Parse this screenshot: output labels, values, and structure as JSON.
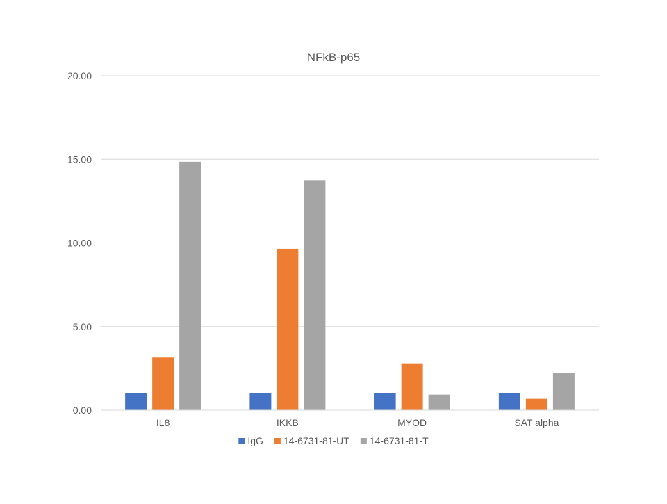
{
  "chart_data": {
    "type": "bar",
    "title": "NFkB-p65",
    "xlabel": "",
    "ylabel": "",
    "categories": [
      "IL8",
      "IKKB",
      "MYOD",
      "SAT alpha"
    ],
    "series": [
      {
        "name": "IgG",
        "color": "#4472C4",
        "values": [
          1.0,
          1.0,
          1.0,
          1.0
        ]
      },
      {
        "name": "14-6731-81-UT",
        "color": "#ED7D31",
        "values": [
          3.15,
          9.65,
          2.8,
          0.68
        ]
      },
      {
        "name": "14-6731-81-T",
        "color": "#A5A5A5",
        "values": [
          14.85,
          13.75,
          0.93,
          2.22
        ]
      }
    ],
    "ylim": [
      0,
      20
    ],
    "yticks": [
      0,
      5,
      10,
      15,
      20
    ],
    "ytick_labels": [
      "0.00",
      "5.00",
      "10.00",
      "15.00",
      "20.00"
    ],
    "grid": true,
    "legend_position": "bottom"
  }
}
